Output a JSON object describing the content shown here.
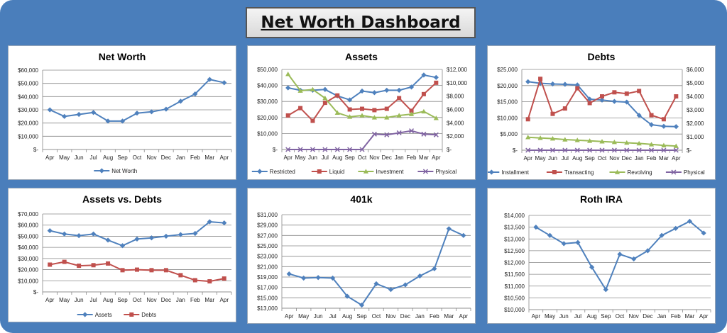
{
  "dashboard": {
    "title": "Net Worth Dashboard"
  },
  "chart_data": [
    {
      "type": "line",
      "title": "Net Worth",
      "categories": [
        "Apr",
        "May",
        "Jun",
        "Jul",
        "Aug",
        "Sep",
        "Oct",
        "Nov",
        "Dec",
        "Jan",
        "Feb",
        "Mar",
        "Apr"
      ],
      "ylim": [
        0,
        60000
      ],
      "yticks": [
        0,
        10000,
        20000,
        30000,
        40000,
        50000,
        60000
      ],
      "ytick_labels": [
        "$-",
        "$10,000",
        "$20,000",
        "$30,000",
        "$40,000",
        "$50,000",
        "$60,000"
      ],
      "grid": true,
      "legend": "bottom",
      "series": [
        {
          "name": "Net Worth",
          "color": "#4f81bd",
          "marker": "diamond",
          "axis": "left",
          "values": [
            30000,
            25000,
            26500,
            28000,
            21500,
            21500,
            27500,
            28500,
            30500,
            36500,
            42000,
            53000,
            50500
          ]
        }
      ]
    },
    {
      "type": "line",
      "title": "Assets",
      "categories": [
        "Apr",
        "May",
        "Jun",
        "Jul",
        "Aug",
        "Sep",
        "Oct",
        "Nov",
        "Dec",
        "Jan",
        "Feb",
        "Mar",
        "Apr"
      ],
      "ylim": [
        0,
        50000
      ],
      "yticks": [
        0,
        10000,
        20000,
        30000,
        40000,
        50000
      ],
      "ytick_labels": [
        "$-",
        "$10,000",
        "$20,000",
        "$30,000",
        "$40,000",
        "$50,000"
      ],
      "y2lim": [
        0,
        12000
      ],
      "y2ticks": [
        0,
        2000,
        4000,
        6000,
        8000,
        10000,
        12000
      ],
      "y2tick_labels": [
        "$-",
        "$2,000",
        "$4,000",
        "$6,000",
        "$8,000",
        "$10,000",
        "$12,000"
      ],
      "grid": true,
      "legend": "bottom",
      "series": [
        {
          "name": "Restricted",
          "color": "#4f81bd",
          "marker": "diamond",
          "axis": "left",
          "values": [
            38500,
            37000,
            37000,
            37500,
            33500,
            31000,
            36500,
            35500,
            37000,
            37000,
            39000,
            46500,
            45000
          ]
        },
        {
          "name": "Liquid",
          "color": "#c0504d",
          "marker": "square",
          "axis": "right",
          "values": [
            5100,
            6200,
            4300,
            7000,
            8100,
            6000,
            6100,
            5900,
            6100,
            7700,
            5800,
            8300,
            10000
          ]
        },
        {
          "name": "Investment",
          "color": "#9bbb59",
          "marker": "triangle",
          "axis": "right",
          "values": [
            11300,
            8800,
            9000,
            7700,
            5500,
            4900,
            5100,
            4800,
            4800,
            5100,
            5300,
            5700,
            4700
          ]
        },
        {
          "name": "Physical",
          "color": "#8064a2",
          "marker": "x",
          "axis": "right",
          "values": [
            0,
            0,
            0,
            0,
            0,
            0,
            0,
            2300,
            2200,
            2500,
            2800,
            2300,
            2200
          ]
        }
      ]
    },
    {
      "type": "line",
      "title": "Debts",
      "categories": [
        "Apr",
        "May",
        "Jun",
        "Jul",
        "Aug",
        "Sep",
        "Oct",
        "Nov",
        "Dec",
        "Jan",
        "Feb",
        "Mar",
        "Apr"
      ],
      "ylim": [
        0,
        25000
      ],
      "yticks": [
        0,
        5000,
        10000,
        15000,
        20000,
        25000
      ],
      "ytick_labels": [
        "$-",
        "$5,000",
        "$10,000",
        "$15,000",
        "$20,000",
        "$25,000"
      ],
      "y2lim": [
        0,
        6000
      ],
      "y2ticks": [
        0,
        1000,
        2000,
        3000,
        4000,
        5000,
        6000
      ],
      "y2tick_labels": [
        "$-",
        "$1,000",
        "$2,000",
        "$3,000",
        "$4,000",
        "$5,000",
        "$6,000"
      ],
      "grid": true,
      "legend": "bottom",
      "series": [
        {
          "name": "Installment",
          "color": "#4f81bd",
          "marker": "diamond",
          "axis": "left",
          "values": [
            21200,
            20700,
            20500,
            20400,
            20200,
            15800,
            15500,
            15100,
            14900,
            10800,
            7900,
            7400,
            7300
          ]
        },
        {
          "name": "Transacting",
          "color": "#c0504d",
          "marker": "square",
          "axis": "right",
          "values": [
            2300,
            5300,
            2700,
            3100,
            4600,
            3500,
            4000,
            4300,
            4200,
            4400,
            2600,
            2300,
            4000
          ]
        },
        {
          "name": "Revolving",
          "color": "#9bbb59",
          "marker": "triangle",
          "axis": "left",
          "values": [
            4000,
            3800,
            3600,
            3300,
            3100,
            2900,
            2700,
            2500,
            2300,
            2100,
            1800,
            1500,
            1300
          ]
        },
        {
          "name": "Physical",
          "color": "#8064a2",
          "marker": "x",
          "axis": "right",
          "values": [
            0,
            0,
            0,
            0,
            0,
            0,
            0,
            0,
            0,
            0,
            0,
            0,
            0
          ]
        }
      ]
    },
    {
      "type": "line",
      "title": "Assets vs. Debts",
      "categories": [
        "Apr",
        "May",
        "Jun",
        "Jul",
        "Aug",
        "Sep",
        "Oct",
        "Nov",
        "Dec",
        "Jan",
        "Feb",
        "Mar",
        "Apr"
      ],
      "ylim": [
        0,
        70000
      ],
      "yticks": [
        0,
        10000,
        20000,
        30000,
        40000,
        50000,
        60000,
        70000
      ],
      "ytick_labels": [
        "$-",
        "$10,000",
        "$20,000",
        "$30,000",
        "$40,000",
        "$50,000",
        "$60,000",
        "$70,000"
      ],
      "grid": true,
      "legend": "bottom",
      "series": [
        {
          "name": "Assets",
          "color": "#4f81bd",
          "marker": "diamond",
          "axis": "left",
          "values": [
            55000,
            52000,
            50500,
            52000,
            46500,
            41500,
            47500,
            48500,
            50000,
            51500,
            52500,
            63000,
            62000
          ]
        },
        {
          "name": "Debts",
          "color": "#c0504d",
          "marker": "square",
          "axis": "left",
          "values": [
            24500,
            27000,
            23500,
            24000,
            25500,
            19500,
            20000,
            19500,
            19500,
            15000,
            10500,
            9500,
            12000
          ]
        }
      ]
    },
    {
      "type": "line",
      "title": "401k",
      "categories": [
        "Apr",
        "May",
        "Jun",
        "Jul",
        "Aug",
        "Sep",
        "Oct",
        "Nov",
        "Dec",
        "Jan",
        "Feb",
        "Mar",
        "Apr"
      ],
      "ylim": [
        13000,
        31000
      ],
      "yticks": [
        13000,
        15000,
        17000,
        19000,
        21000,
        23000,
        25000,
        27000,
        29000,
        31000
      ],
      "ytick_labels": [
        "$13,000",
        "$15,000",
        "$17,000",
        "$19,000",
        "$21,000",
        "$23,000",
        "$25,000",
        "$27,000",
        "$29,000",
        "$31,000"
      ],
      "grid": true,
      "legend": "none",
      "series": [
        {
          "name": "",
          "color": "#4f81bd",
          "marker": "diamond",
          "axis": "left",
          "values": [
            19600,
            18800,
            18900,
            18800,
            15300,
            13600,
            17700,
            16600,
            17500,
            19200,
            20600,
            28300,
            27000
          ]
        }
      ]
    },
    {
      "type": "line",
      "title": "Roth IRA",
      "categories": [
        "Apr",
        "May",
        "Jun",
        "Jul",
        "Aug",
        "Sep",
        "Oct",
        "Nov",
        "Dec",
        "Jan",
        "Feb",
        "Mar",
        "Apr"
      ],
      "ylim": [
        10000,
        14000
      ],
      "yticks": [
        10000,
        10500,
        11000,
        11500,
        12000,
        12500,
        13000,
        13500,
        14000
      ],
      "ytick_labels": [
        "$10,000",
        "$10,500",
        "$11,000",
        "$11,500",
        "$12,000",
        "$12,500",
        "$13,000",
        "$13,500",
        "$14,000"
      ],
      "grid": true,
      "legend": "none",
      "series": [
        {
          "name": "",
          "color": "#4f81bd",
          "marker": "diamond",
          "axis": "left",
          "values": [
            13500,
            13150,
            12800,
            12850,
            11800,
            10850,
            12350,
            12150,
            12500,
            13150,
            13450,
            13750,
            13250
          ]
        }
      ]
    }
  ]
}
